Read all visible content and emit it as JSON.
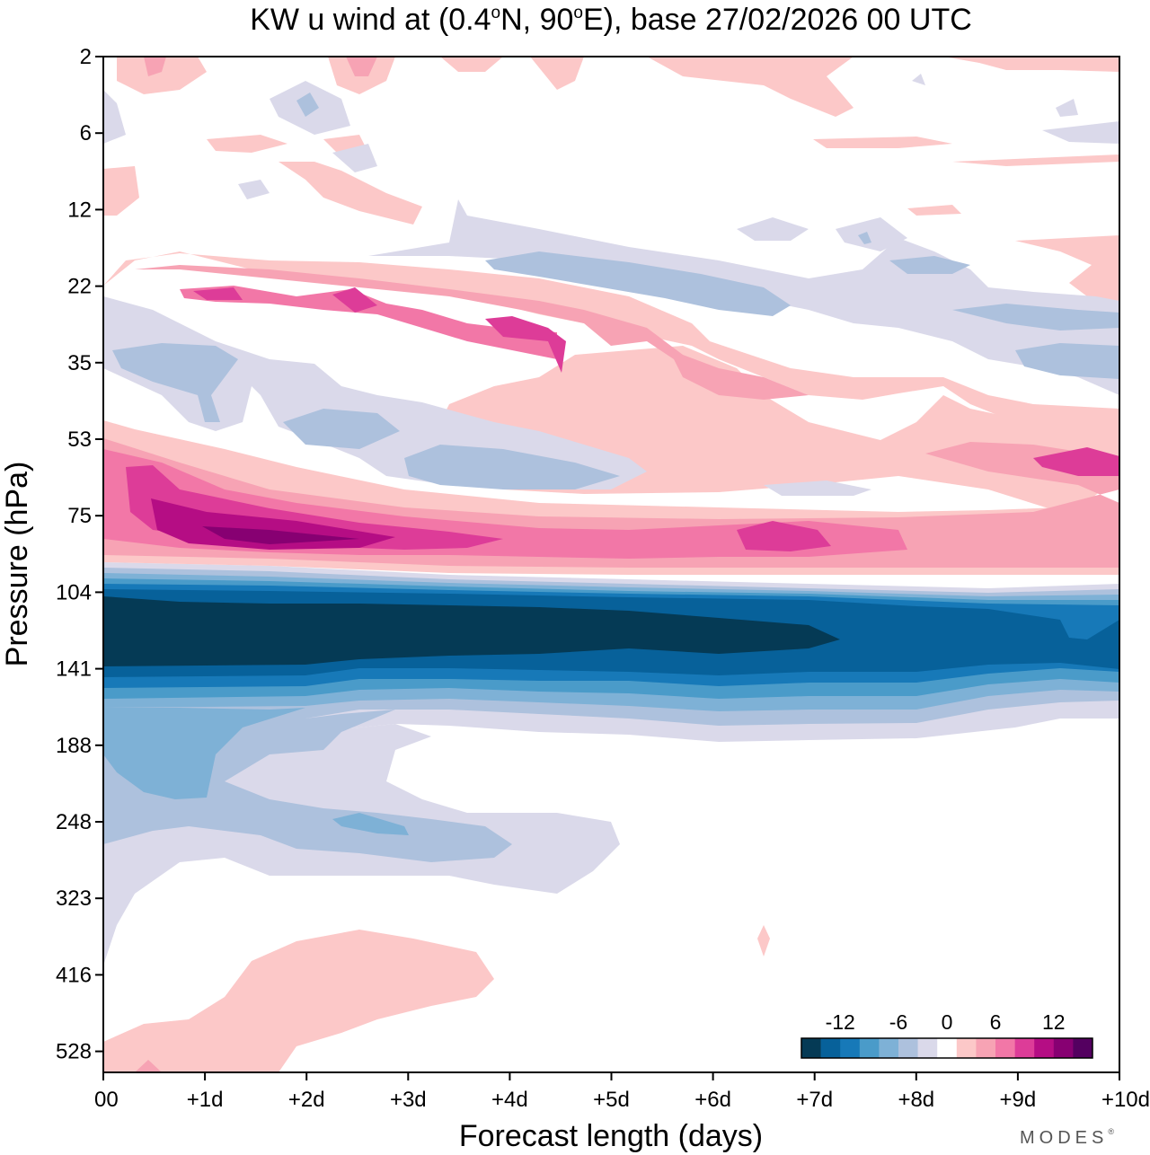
{
  "chart_data": {
    "type": "heatmap",
    "title_prefix": "KW u wind at (0.4",
    "title_lat_dir": "N, 90",
    "title_lon_dir": "E),  base 27/02/2026  00 UTC",
    "degree_mark": "o",
    "xlabel": "Forecast length (days)",
    "ylabel": "Pressure (hPa)",
    "x_unit": "days",
    "xlim": [
      0,
      10
    ],
    "x_ticks": [
      0,
      1,
      2,
      3,
      4,
      5,
      6,
      7,
      8,
      9,
      10
    ],
    "x_tick_labels": [
      "00",
      "+1d",
      "+2d",
      "+3d",
      "+4d",
      "+5d",
      "+6d",
      "+7d",
      "+8d",
      "+9d",
      "+10d"
    ],
    "y_tick_labels": [
      "2",
      "6",
      "12",
      "22",
      "35",
      "53",
      "75",
      "104",
      "141",
      "188",
      "248",
      "323",
      "416",
      "528"
    ],
    "y_scale": "log-pressure, top 2 hPa to bottom ~640 hPa",
    "colorbar": {
      "levels": [
        -16,
        -14,
        -12,
        -10,
        -8,
        -6,
        -4,
        -2,
        2,
        4,
        6,
        8,
        10,
        12,
        14,
        16
      ],
      "tick_labels": [
        "-12",
        "-6",
        "0",
        "6",
        "12"
      ],
      "tick_values": [
        -12,
        -6,
        0,
        6,
        12
      ],
      "colors": [
        "#053a55",
        "#07619a",
        "#1779b8",
        "#4a9bc9",
        "#7eb1d6",
        "#adc1dd",
        "#dad9ea",
        "#ffffff",
        "#fcc8c8",
        "#f7a3b4",
        "#f277a7",
        "#dd3c98",
        "#b50d84",
        "#870072",
        "#540060"
      ]
    },
    "features": [
      {
        "name": "Easterly core near 104-141 hPa",
        "min_value": -16,
        "x_range_days": [
          0,
          10
        ],
        "description_values": "strongest (< -14 m/s) through day 7"
      },
      {
        "name": "Westerly band near 75 hPa",
        "max_value": 16,
        "x_range_days": [
          0,
          10
        ],
        "description_values": "peak > 14 m/s around day 1-2.5"
      },
      {
        "name": "Westerly band near 22-35 hPa",
        "max_value": 10,
        "x_range_days": [
          0,
          10
        ]
      },
      {
        "name": "Easterlies near 188-323 hPa",
        "min_value": -10,
        "x_range_days": [
          0,
          6
        ]
      },
      {
        "name": "Westerlies near 416-528 hPa",
        "max_value": 4,
        "x_range_days": [
          0,
          4
        ]
      }
    ]
  },
  "branding": {
    "logo_text": "MODES",
    "mark": "®"
  }
}
